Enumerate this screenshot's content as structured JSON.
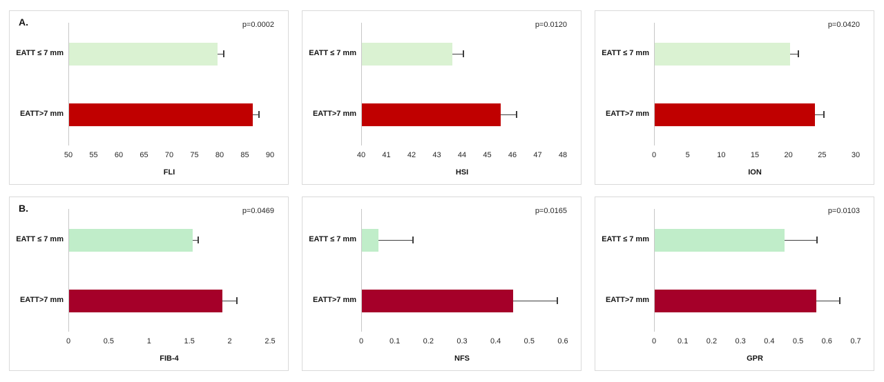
{
  "figure": {
    "background": "#ffffff",
    "panel_border_color": "#d9d9d9",
    "axis_line_color": "#c6c6c6",
    "error_bar_color": "#3d3d3d",
    "rows": [
      {
        "section_label": "A.",
        "charts": [
          "FLI",
          "HSI",
          "ION"
        ]
      },
      {
        "section_label": "B.",
        "charts": [
          "FIB-4",
          "NFS",
          "GPR"
        ]
      }
    ]
  },
  "chart_data": [
    {
      "type": "bar",
      "orientation": "horizontal",
      "row": 0,
      "panel_label": "A.",
      "xlabel": "FLI",
      "p_value": "p=0.0002",
      "categories": [
        "EATT ≤ 7 mm",
        "EATT>7 mm"
      ],
      "values": [
        79.5,
        86.5
      ],
      "error_upper": [
        80.5,
        87.5
      ],
      "bar_colors": [
        "#daf2d2",
        "#c00000"
      ],
      "xlim": [
        50,
        90
      ],
      "ticks": [
        "50",
        "55",
        "60",
        "65",
        "70",
        "75",
        "80",
        "85",
        "90"
      ],
      "grid": false,
      "legend": false
    },
    {
      "type": "bar",
      "orientation": "horizontal",
      "row": 0,
      "panel_label": "",
      "xlabel": "HSI",
      "p_value": "p=0.0120",
      "categories": [
        "EATT ≤ 7 mm",
        "EATT>7 mm"
      ],
      "values": [
        43.6,
        45.5
      ],
      "error_upper": [
        44.0,
        46.1
      ],
      "bar_colors": [
        "#daf2d2",
        "#c00000"
      ],
      "xlim": [
        40,
        48
      ],
      "ticks": [
        "40",
        "41",
        "42",
        "43",
        "44",
        "45",
        "46",
        "47",
        "48"
      ],
      "grid": false,
      "legend": false
    },
    {
      "type": "bar",
      "orientation": "horizontal",
      "row": 0,
      "panel_label": "",
      "xlabel": "ION",
      "p_value": "p=0.0420",
      "categories": [
        "EATT ≤ 7 mm",
        "EATT>7 mm"
      ],
      "values": [
        20.1,
        23.8
      ],
      "error_upper": [
        21.3,
        25.1
      ],
      "bar_colors": [
        "#daf2d2",
        "#c00000"
      ],
      "xlim": [
        0,
        30
      ],
      "ticks": [
        "0",
        "5",
        "10",
        "15",
        "20",
        "25",
        "30"
      ],
      "grid": false,
      "legend": false
    },
    {
      "type": "bar",
      "orientation": "horizontal",
      "row": 1,
      "panel_label": "B.",
      "xlabel": "FIB-4",
      "p_value": "p=0.0469",
      "categories": [
        "EATT ≤ 7 mm",
        "EATT>7 mm"
      ],
      "values": [
        1.53,
        1.9
      ],
      "error_upper": [
        1.59,
        2.07
      ],
      "bar_colors": [
        "#c0edc9",
        "#a50029"
      ],
      "xlim": [
        0,
        2.5
      ],
      "ticks": [
        "0",
        "0.5",
        "1",
        "1.5",
        "2",
        "2.5"
      ],
      "grid": false,
      "legend": false
    },
    {
      "type": "bar",
      "orientation": "horizontal",
      "row": 1,
      "panel_label": "",
      "xlabel": "NFS",
      "p_value": "p=0.0165",
      "categories": [
        "EATT ≤ 7 mm",
        "EATT>7 mm"
      ],
      "values": [
        0.05,
        0.45
      ],
      "error_upper": [
        0.15,
        0.58
      ],
      "bar_colors": [
        "#c0edc9",
        "#a50029"
      ],
      "xlim": [
        0,
        0.6
      ],
      "ticks": [
        "0",
        "0.1",
        "0.2",
        "0.3",
        "0.4",
        "0.5",
        "0.6"
      ],
      "grid": false,
      "legend": false
    },
    {
      "type": "bar",
      "orientation": "horizontal",
      "row": 1,
      "panel_label": "",
      "xlabel": "GPR",
      "p_value": "p=0.0103",
      "categories": [
        "EATT ≤ 7 mm",
        "EATT>7 mm"
      ],
      "values": [
        0.45,
        0.56
      ],
      "error_upper": [
        0.56,
        0.64
      ],
      "bar_colors": [
        "#c0edc9",
        "#a50029"
      ],
      "xlim": [
        0,
        0.7
      ],
      "ticks": [
        "0",
        "0.1",
        "0.2",
        "0.3",
        "0.4",
        "0.5",
        "0.6",
        "0.7"
      ],
      "grid": false,
      "legend": false
    }
  ]
}
